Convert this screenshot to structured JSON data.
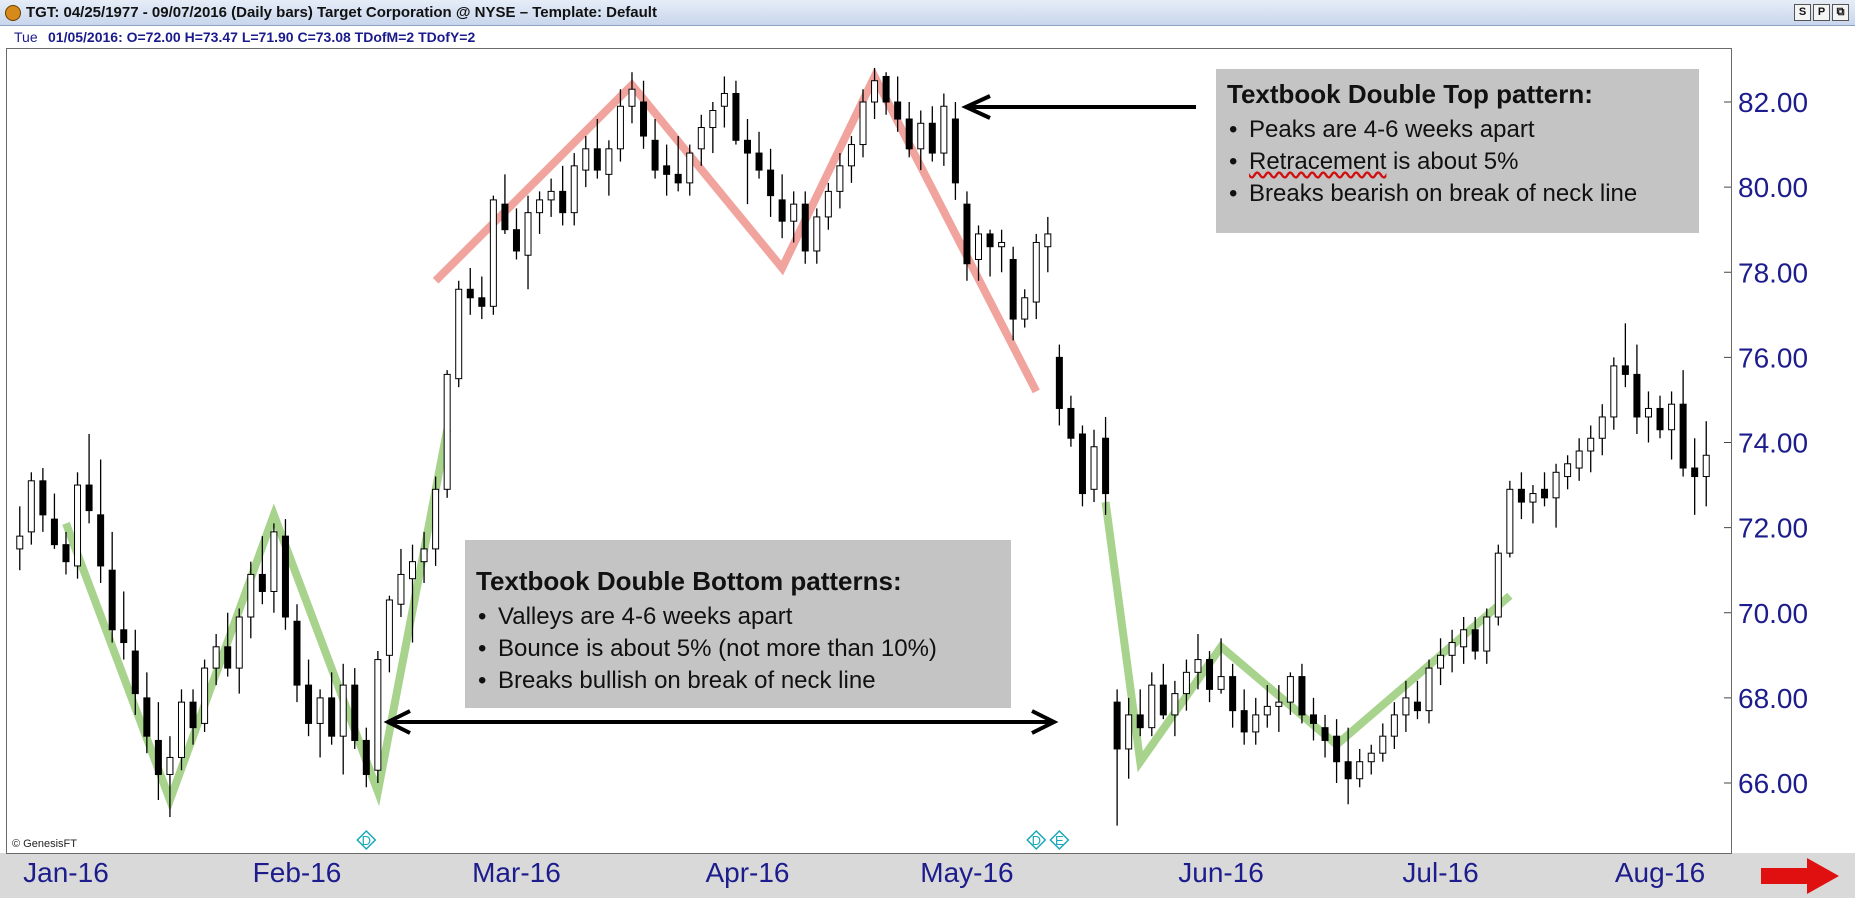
{
  "window": {
    "title": "TGT:  04/25/1977 - 09/07/2016  (Daily bars)   Target Corporation @ NYSE  –  Template: Default",
    "buttons": [
      "S",
      "P",
      "⧉"
    ]
  },
  "info_bar": {
    "day": "Tue",
    "ohlc_text": "01/05/2016:  O=72.00  H=73.47  L=71.90  C=73.08  TDofM=2  TDofY=2"
  },
  "credit": "© GenesisFT",
  "annotations": {
    "double_top": {
      "heading": "Textbook Double Top pattern:",
      "bullets": [
        "Peaks are 4-6 weeks apart",
        "Retracement",
        " is about 5%",
        "Breaks bearish on break of neck line"
      ]
    },
    "double_bottom": {
      "heading": "Textbook Double Bottom patterns:",
      "bullets": [
        "Valleys are 4-6 weeks apart",
        "Bounce is about 5% (not more than 10%)",
        "Breaks bullish on break of neck line"
      ]
    },
    "event_markers": [
      "D",
      "D",
      "E"
    ]
  },
  "colors": {
    "axis_text": "#1c1c8c",
    "up_fill": "#ffffff",
    "down_fill": "#000000",
    "top_pattern": "#f09a94",
    "bottom_pattern": "#9fce80",
    "marker": "#1aa8b8",
    "next_arrow": "#e01010"
  },
  "chart_data": {
    "type": "candlestick",
    "symbol": "TGT",
    "y_ticks": [
      "66.00",
      "68.00",
      "70.00",
      "72.00",
      "74.00",
      "76.00",
      "78.00",
      "80.00",
      "82.00"
    ],
    "y_tick_values": [
      66,
      68,
      70,
      72,
      74,
      76,
      78,
      80,
      82
    ],
    "x_labels": [
      "Jan-16",
      "Feb-16",
      "Mar-16",
      "Apr-16",
      "May-16",
      "Jun-16",
      "Jul-16",
      "Aug-16"
    ],
    "x_label_bars": [
      4,
      24,
      43,
      63,
      82,
      104,
      123,
      142
    ],
    "ylim": [
      64.9,
      83.7
    ],
    "n_bars": 147,
    "bars": [
      [
        0,
        71.5,
        72.5,
        71,
        71.8
      ],
      [
        1,
        71.9,
        73.3,
        71.6,
        73.1
      ],
      [
        2,
        73.1,
        73.4,
        71.9,
        72.3
      ],
      [
        3,
        72.2,
        72.8,
        71.5,
        71.6
      ],
      [
        4,
        71.6,
        71.9,
        70.9,
        71.2
      ],
      [
        5,
        71.1,
        73.3,
        70.8,
        73.0
      ],
      [
        6,
        73.0,
        74.2,
        72.1,
        72.4
      ],
      [
        7,
        72.3,
        73.6,
        70.7,
        71.1
      ],
      [
        8,
        71.0,
        71.9,
        69.3,
        69.6
      ],
      [
        9,
        69.6,
        70.5,
        68.9,
        69.3
      ],
      [
        10,
        69.1,
        69.6,
        67.6,
        68.1
      ],
      [
        11,
        68.0,
        68.6,
        66.7,
        67.1
      ],
      [
        12,
        67.0,
        67.9,
        65.6,
        66.2
      ],
      [
        13,
        66.2,
        67.1,
        65.2,
        66.6
      ],
      [
        14,
        66.6,
        68.2,
        66.3,
        67.9
      ],
      [
        15,
        67.9,
        68.2,
        66.9,
        67.3
      ],
      [
        16,
        67.4,
        68.9,
        67.2,
        68.7
      ],
      [
        17,
        68.7,
        69.5,
        68.3,
        69.2
      ],
      [
        18,
        69.2,
        70.0,
        68.5,
        68.7
      ],
      [
        19,
        68.7,
        70.1,
        68.1,
        69.9
      ],
      [
        20,
        69.9,
        71.2,
        69.4,
        70.9
      ],
      [
        21,
        70.9,
        71.8,
        70.2,
        70.5
      ],
      [
        22,
        70.5,
        72.1,
        70.0,
        71.9
      ],
      [
        23,
        71.8,
        72.2,
        69.6,
        69.9
      ],
      [
        24,
        69.8,
        70.2,
        67.9,
        68.3
      ],
      [
        25,
        68.3,
        68.9,
        67.1,
        67.4
      ],
      [
        26,
        67.4,
        68.2,
        66.6,
        68.0
      ],
      [
        27,
        68.0,
        68.6,
        66.9,
        67.1
      ],
      [
        28,
        67.1,
        68.8,
        66.2,
        68.3
      ],
      [
        29,
        68.3,
        68.7,
        66.8,
        67.0
      ],
      [
        30,
        67.0,
        67.3,
        65.9,
        66.2
      ],
      [
        31,
        66.3,
        69.1,
        66.0,
        68.9
      ],
      [
        32,
        69.0,
        70.4,
        68.6,
        70.3
      ],
      [
        33,
        70.2,
        71.5,
        69.9,
        70.9
      ],
      [
        34,
        70.8,
        71.6,
        69.3,
        71.2
      ],
      [
        35,
        71.2,
        71.9,
        70.7,
        71.5
      ],
      [
        36,
        71.5,
        73.2,
        71.1,
        72.9
      ],
      [
        37,
        72.9,
        75.7,
        72.7,
        75.6
      ],
      [
        38,
        75.5,
        77.8,
        75.3,
        77.6
      ],
      [
        39,
        77.6,
        78.1,
        77.0,
        77.4
      ],
      [
        40,
        77.4,
        77.9,
        76.9,
        77.2
      ],
      [
        41,
        77.2,
        79.8,
        77.0,
        79.7
      ],
      [
        42,
        79.6,
        80.3,
        78.9,
        79.0
      ],
      [
        43,
        79.0,
        79.5,
        78.3,
        78.5
      ],
      [
        44,
        78.4,
        79.8,
        77.6,
        79.4
      ],
      [
        45,
        79.4,
        79.9,
        78.9,
        79.7
      ],
      [
        46,
        79.7,
        80.2,
        79.3,
        79.9
      ],
      [
        47,
        79.9,
        80.5,
        79.1,
        79.4
      ],
      [
        48,
        79.4,
        80.8,
        79.1,
        80.5
      ],
      [
        49,
        80.4,
        81.2,
        80.0,
        80.9
      ],
      [
        50,
        80.9,
        81.6,
        80.2,
        80.4
      ],
      [
        51,
        80.3,
        81.1,
        79.8,
        80.9
      ],
      [
        52,
        80.9,
        82.3,
        80.6,
        81.9
      ],
      [
        53,
        81.9,
        82.7,
        81.5,
        82.3
      ],
      [
        54,
        82.0,
        82.5,
        80.9,
        81.2
      ],
      [
        55,
        81.1,
        81.6,
        80.2,
        80.4
      ],
      [
        56,
        80.5,
        81.0,
        79.8,
        80.3
      ],
      [
        57,
        80.3,
        81.2,
        79.9,
        80.1
      ],
      [
        58,
        80.1,
        81.0,
        79.8,
        80.8
      ],
      [
        59,
        80.9,
        81.7,
        80.5,
        81.4
      ],
      [
        60,
        81.4,
        82.0,
        80.8,
        81.8
      ],
      [
        61,
        81.9,
        82.6,
        81.4,
        82.2
      ],
      [
        62,
        82.2,
        82.5,
        81.0,
        81.1
      ],
      [
        63,
        81.1,
        81.6,
        79.6,
        80.8
      ],
      [
        64,
        80.8,
        81.3,
        80.2,
        80.4
      ],
      [
        65,
        80.4,
        80.9,
        79.3,
        79.8
      ],
      [
        66,
        79.7,
        80.3,
        78.8,
        79.2
      ],
      [
        67,
        79.2,
        79.9,
        78.7,
        79.6
      ],
      [
        68,
        79.6,
        79.9,
        78.2,
        78.5
      ],
      [
        69,
        78.5,
        79.5,
        78.2,
        79.3
      ],
      [
        70,
        79.3,
        80.1,
        79.0,
        79.9
      ],
      [
        71,
        79.9,
        80.8,
        79.5,
        80.5
      ],
      [
        72,
        80.5,
        81.2,
        80.1,
        81.0
      ],
      [
        73,
        81.0,
        82.3,
        80.7,
        82.0
      ],
      [
        74,
        82.0,
        82.8,
        81.6,
        82.5
      ],
      [
        75,
        82.6,
        82.7,
        81.7,
        82.0
      ],
      [
        76,
        82.0,
        82.6,
        81.3,
        81.6
      ],
      [
        77,
        81.6,
        82.0,
        80.7,
        80.9
      ],
      [
        78,
        80.9,
        81.8,
        80.4,
        81.5
      ],
      [
        79,
        81.5,
        81.9,
        80.6,
        80.8
      ],
      [
        80,
        80.8,
        82.2,
        80.5,
        81.9
      ],
      [
        81,
        81.6,
        82.0,
        79.7,
        80.1
      ],
      [
        82,
        79.6,
        79.9,
        77.8,
        78.2
      ],
      [
        83,
        78.3,
        79.1,
        77.8,
        78.9
      ],
      [
        84,
        78.9,
        79.0,
        77.9,
        78.6
      ],
      [
        85,
        78.6,
        79.0,
        78.0,
        78.7
      ],
      [
        86,
        78.3,
        78.6,
        76.4,
        76.9
      ],
      [
        87,
        76.9,
        77.6,
        76.7,
        77.4
      ],
      [
        88,
        77.3,
        78.9,
        76.9,
        78.7
      ],
      [
        89,
        78.6,
        79.3,
        78.0,
        78.9
      ],
      [
        90,
        76.0,
        76.3,
        74.4,
        74.8
      ],
      [
        91,
        74.8,
        75.1,
        73.9,
        74.1
      ],
      [
        92,
        74.2,
        74.4,
        72.5,
        72.8
      ],
      [
        93,
        72.9,
        74.3,
        72.6,
        73.9
      ],
      [
        94,
        74.1,
        74.6,
        72.3,
        72.8
      ],
      [
        95,
        67.9,
        68.2,
        65.0,
        66.8
      ],
      [
        96,
        66.8,
        68.0,
        66.1,
        67.6
      ],
      [
        97,
        67.6,
        68.2,
        67.1,
        67.3
      ],
      [
        98,
        67.3,
        68.6,
        67.1,
        68.3
      ],
      [
        99,
        68.3,
        68.8,
        67.5,
        67.6
      ],
      [
        100,
        67.6,
        68.4,
        67.1,
        68.1
      ],
      [
        101,
        68.1,
        68.9,
        67.7,
        68.6
      ],
      [
        102,
        68.6,
        69.5,
        68.2,
        68.9
      ],
      [
        103,
        68.9,
        69.1,
        67.9,
        68.2
      ],
      [
        104,
        68.2,
        69.4,
        68.1,
        68.5
      ],
      [
        105,
        68.5,
        68.8,
        67.3,
        67.7
      ],
      [
        106,
        67.7,
        68.2,
        66.9,
        67.2
      ],
      [
        107,
        67.2,
        68.0,
        66.9,
        67.6
      ],
      [
        108,
        67.6,
        68.3,
        67.3,
        67.8
      ],
      [
        109,
        67.8,
        68.3,
        67.2,
        67.9
      ],
      [
        110,
        67.9,
        68.6,
        67.6,
        68.5
      ],
      [
        111,
        68.5,
        68.8,
        67.4,
        67.6
      ],
      [
        112,
        67.6,
        68.0,
        67.0,
        67.4
      ],
      [
        113,
        67.3,
        67.6,
        66.6,
        67.0
      ],
      [
        114,
        67.1,
        67.5,
        66.0,
        66.5
      ],
      [
        115,
        66.5,
        67.3,
        65.5,
        66.1
      ],
      [
        116,
        66.1,
        66.8,
        65.9,
        66.5
      ],
      [
        117,
        66.5,
        66.9,
        66.2,
        66.7
      ],
      [
        118,
        66.7,
        67.4,
        66.5,
        67.1
      ],
      [
        119,
        67.1,
        67.9,
        66.8,
        67.6
      ],
      [
        120,
        67.6,
        68.4,
        67.2,
        68.0
      ],
      [
        121,
        67.9,
        68.4,
        67.5,
        67.7
      ],
      [
        122,
        67.7,
        68.9,
        67.4,
        68.7
      ],
      [
        123,
        68.7,
        69.4,
        68.3,
        69.0
      ],
      [
        124,
        69.0,
        69.6,
        68.6,
        69.3
      ],
      [
        125,
        69.2,
        69.9,
        68.8,
        69.6
      ],
      [
        126,
        69.6,
        69.9,
        68.9,
        69.1
      ],
      [
        127,
        69.1,
        70.1,
        68.8,
        69.9
      ],
      [
        128,
        69.9,
        71.6,
        69.7,
        71.4
      ],
      [
        129,
        71.4,
        73.1,
        71.3,
        72.9
      ],
      [
        130,
        72.9,
        73.3,
        72.2,
        72.6
      ],
      [
        131,
        72.6,
        73.0,
        72.1,
        72.8
      ],
      [
        132,
        72.9,
        73.3,
        72.5,
        72.7
      ],
      [
        133,
        72.7,
        73.5,
        72.0,
        73.3
      ],
      [
        134,
        73.2,
        73.7,
        72.9,
        73.5
      ],
      [
        135,
        73.4,
        74.1,
        73.1,
        73.8
      ],
      [
        136,
        73.8,
        74.4,
        73.3,
        74.1
      ],
      [
        137,
        74.1,
        74.9,
        73.7,
        74.6
      ],
      [
        138,
        74.6,
        76.0,
        74.3,
        75.8
      ],
      [
        139,
        75.8,
        76.8,
        75.3,
        75.6
      ],
      [
        140,
        75.6,
        76.3,
        74.2,
        74.6
      ],
      [
        141,
        74.6,
        75.2,
        74.0,
        74.8
      ],
      [
        142,
        74.8,
        75.1,
        74.1,
        74.3
      ],
      [
        143,
        74.3,
        75.2,
        73.6,
        74.9
      ],
      [
        144,
        74.9,
        75.7,
        73.2,
        73.4
      ],
      [
        145,
        73.4,
        74.1,
        72.3,
        73.2
      ],
      [
        146,
        73.2,
        74.5,
        72.5,
        73.7
      ]
    ],
    "double_top_path": [
      [
        36,
        77.8
      ],
      [
        53,
        82.4
      ],
      [
        66,
        78.1
      ],
      [
        74,
        82.6
      ],
      [
        88,
        75.2
      ]
    ],
    "double_bottom_path_1": [
      [
        4,
        72.1
      ],
      [
        13,
        65.6
      ],
      [
        22,
        72.3
      ],
      [
        31,
        65.8
      ],
      [
        37,
        74.3
      ]
    ],
    "double_bottom_path_2": [
      [
        94,
        72.6
      ],
      [
        97,
        66.5
      ],
      [
        104,
        69.2
      ],
      [
        114,
        66.9
      ],
      [
        129,
        70.4
      ]
    ],
    "marker_bars": [
      30,
      88,
      90
    ]
  }
}
